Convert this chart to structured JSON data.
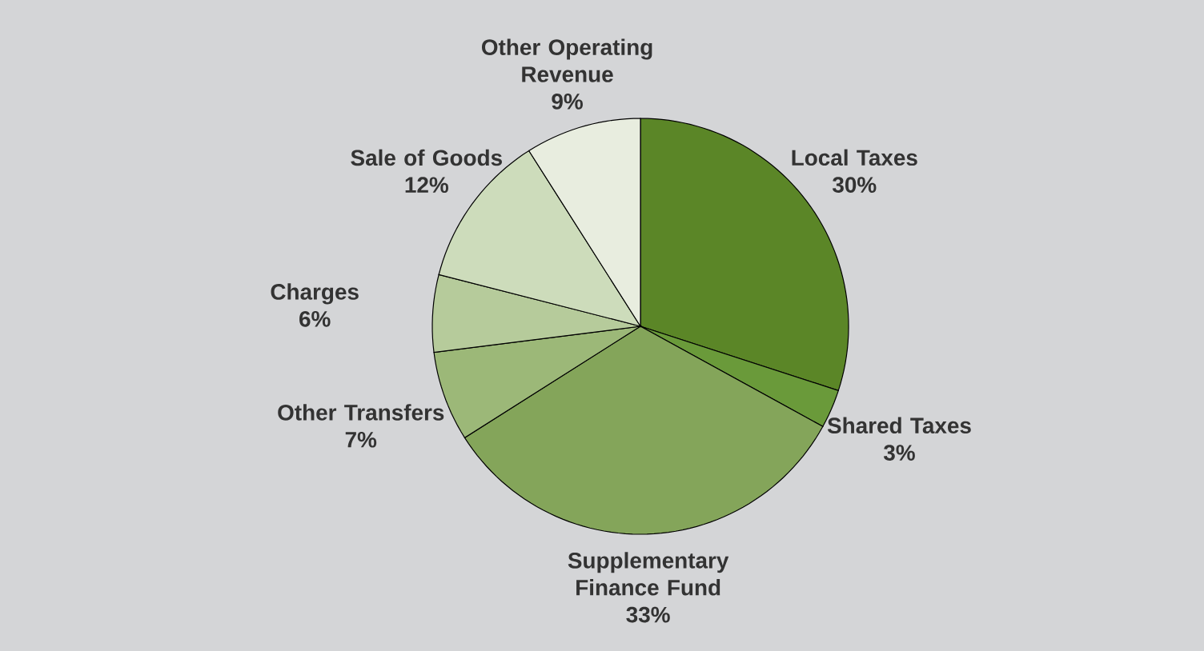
{
  "chart_data": {
    "type": "pie",
    "categories": [
      "Local Taxes",
      "Shared Taxes",
      "Supplementary Finance Fund",
      "Other Transfers",
      "Charges",
      "Sale of Goods",
      "Other Operating Revenue"
    ],
    "values": [
      30,
      3,
      33,
      7,
      6,
      12,
      9
    ],
    "value_labels": [
      "30%",
      "3%",
      "33%",
      "7%",
      "6%",
      "12%",
      "9%"
    ],
    "colors": [
      "#5b8627",
      "#6a9a3a",
      "#84a55a",
      "#9cb878",
      "#b6cb9b",
      "#cddcbb",
      "#e8eddf"
    ]
  }
}
